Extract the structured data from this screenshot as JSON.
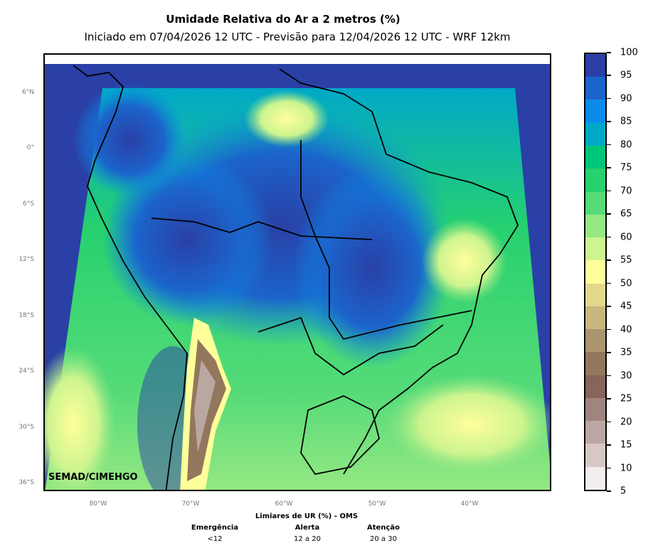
{
  "title": "Umidade Relativa do Ar a 2 metros (%)",
  "subtitle": "Iniciado em 07/04/2026 12 UTC - Previsão para 12/04/2026 12 UTC - WRF 12km",
  "watermark": "SEMAD/CIMEHGO",
  "lat_ticks": [
    "6°N",
    "0°",
    "6°S",
    "12°S",
    "18°S",
    "24°S",
    "30°S",
    "36°S"
  ],
  "lon_ticks": [
    "80°W",
    "70°W",
    "60°W",
    "50°W",
    "40°W"
  ],
  "colorbar": {
    "labels": [
      "5",
      "10",
      "15",
      "20",
      "25",
      "30",
      "35",
      "40",
      "45",
      "50",
      "55",
      "60",
      "65",
      "70",
      "75",
      "80",
      "85",
      "90",
      "95",
      "100"
    ],
    "colors": [
      "#f2eeed",
      "#d7c8c5",
      "#bba7a2",
      "#a0857e",
      "#87645c",
      "#93775d",
      "#ab956e",
      "#c9b77e",
      "#e2d98d",
      "#ffff9a",
      "#cdf48f",
      "#96e883",
      "#55db78",
      "#27d16e",
      "#00c67a",
      "#00a8c8",
      "#0a8ce8",
      "#1b64cb",
      "#2a40a6"
    ]
  },
  "legend": {
    "title": "Limiares de UR (%) - OMS",
    "columns": [
      {
        "label": "Emergência",
        "range": "<12"
      },
      {
        "label": "Alerta",
        "range": "12 a 20"
      },
      {
        "label": "Atenção",
        "range": "20 a 30"
      }
    ]
  }
}
